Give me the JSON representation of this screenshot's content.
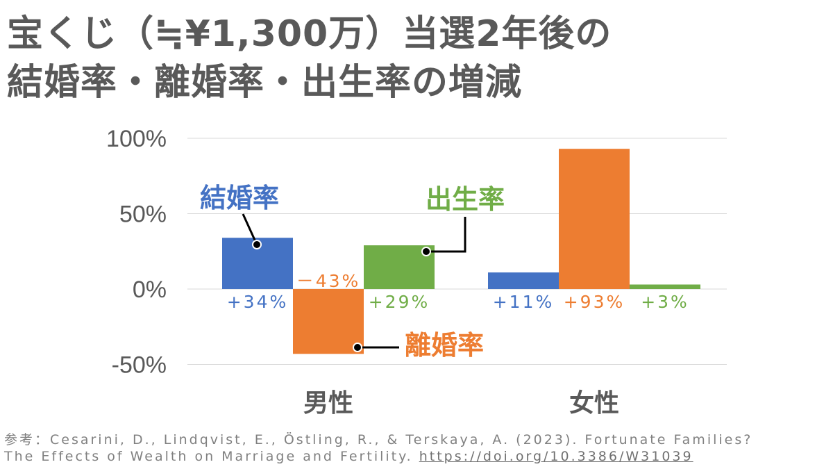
{
  "title": {
    "line1": "宝くじ（≒¥1,300万）当選2年後の",
    "line2": "結婚率・離婚率・出生率の増減"
  },
  "colors": {
    "marriage": "#4472C4",
    "divorce": "#ED7D31",
    "birth": "#70AD47",
    "grid": "#D9D9D9",
    "text": "#595959"
  },
  "chart_data": {
    "type": "bar",
    "categories": [
      "男性",
      "女性"
    ],
    "ylim": [
      -50,
      100
    ],
    "yticks": [
      -50,
      0,
      50,
      100
    ],
    "ytick_labels": [
      "-50%",
      "0%",
      "50%",
      "100%"
    ],
    "grid": true,
    "series": [
      {
        "name": "結婚率",
        "values": [
          34,
          11
        ],
        "labels": [
          "+34%",
          "+11%"
        ]
      },
      {
        "name": "離婚率",
        "values": [
          -43,
          93
        ],
        "labels": [
          "－43%",
          "+93%"
        ]
      },
      {
        "name": "出生率",
        "values": [
          29,
          3
        ],
        "labels": [
          "+29%",
          "+3%"
        ]
      }
    ]
  },
  "citation": {
    "line1": "参考：Cesarini, D., Lindqvist, E., Östling, R., & Terskaya, A. (2023). Fortunate Families?",
    "line2_text": "The Effects of Wealth on Marriage and Fertility. ",
    "line2_link": "https://doi.org/10.3386/W31039"
  }
}
